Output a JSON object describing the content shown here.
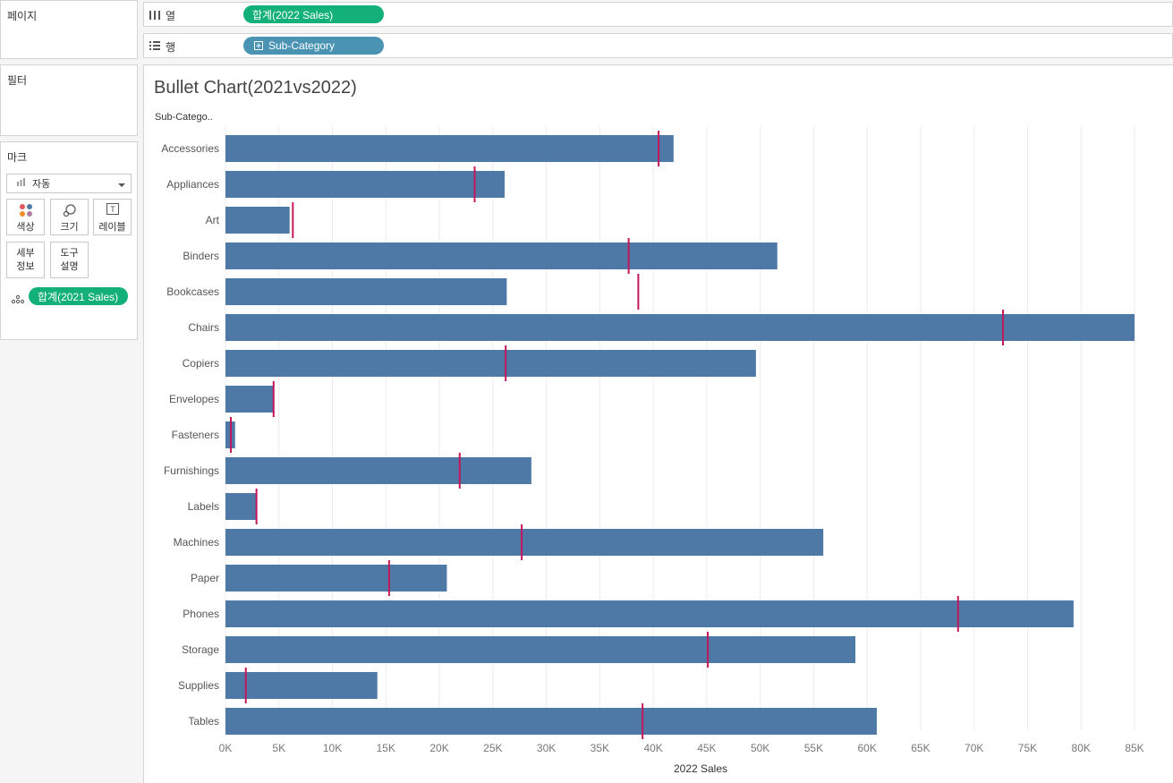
{
  "panels": {
    "pages": "페이지",
    "filters": "필터",
    "marks": "마크"
  },
  "shelves": {
    "columns_label": "열",
    "rows_label": "행",
    "columns_pill": "합계(2022 Sales)",
    "rows_pill": "Sub-Category"
  },
  "marks_card": {
    "type_dropdown": "자동",
    "buttons": {
      "color": "색상",
      "size": "크기",
      "label": "레이블",
      "detail_line1": "세부",
      "detail_line2": "정보",
      "tooltip_line1": "도구",
      "tooltip_line2": "설명"
    },
    "detail_pill": "합계(2021 Sales)"
  },
  "colors": {
    "bar": "#4e79a7",
    "reference": "#c2185b",
    "pill_green": "#14b07a",
    "pill_blue": "#4a93b3"
  },
  "chart_data": {
    "type": "bar",
    "title": "Bullet Chart(2021vs2022)",
    "row_header": "Sub-Catego..",
    "xlabel": "2022 Sales",
    "xlim": [
      0,
      87000
    ],
    "ticks": [
      0,
      5000,
      10000,
      15000,
      20000,
      25000,
      30000,
      35000,
      40000,
      45000,
      50000,
      55000,
      60000,
      65000,
      70000,
      75000,
      80000,
      85000
    ],
    "tick_labels": [
      "0K",
      "5K",
      "10K",
      "15K",
      "20K",
      "25K",
      "30K",
      "35K",
      "40K",
      "45K",
      "50K",
      "55K",
      "60K",
      "65K",
      "70K",
      "75K",
      "80K",
      "85K"
    ],
    "categories": [
      "Accessories",
      "Appliances",
      "Art",
      "Binders",
      "Bookcases",
      "Chairs",
      "Copiers",
      "Envelopes",
      "Fasteners",
      "Furnishings",
      "Labels",
      "Machines",
      "Paper",
      "Phones",
      "Storage",
      "Supplies",
      "Tables"
    ],
    "series": [
      {
        "name": "2022 Sales",
        "values": [
          41900,
          26100,
          6000,
          51600,
          26300,
          85000,
          49600,
          4500,
          900,
          28600,
          2900,
          55900,
          20700,
          79300,
          58900,
          14200,
          60900
        ]
      },
      {
        "name": "2021 Sales",
        "values": [
          40500,
          23300,
          6300,
          37700,
          38600,
          72700,
          26200,
          4500,
          500,
          21900,
          2900,
          27700,
          15300,
          68500,
          45100,
          1900,
          39000
        ]
      }
    ]
  }
}
